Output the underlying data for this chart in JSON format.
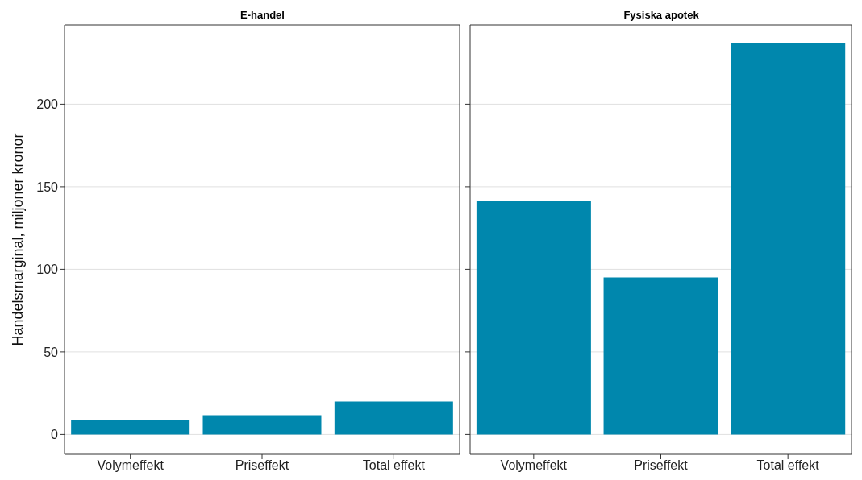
{
  "chart_data": [
    {
      "type": "bar",
      "title": "E-handel",
      "ylabel": "Handelsmarginal, miljoner kronor",
      "categories": [
        "Volymeffekt",
        "Priseffekt",
        "Total effekt"
      ],
      "values": [
        8.7,
        11.6,
        19.9
      ],
      "color": "#0087ad",
      "ylim": [
        -12,
        248
      ],
      "yticks": [
        0,
        50,
        100,
        150,
        200
      ],
      "grid": "y"
    },
    {
      "type": "bar",
      "title": "Fysiska apotek",
      "categories": [
        "Volymeffekt",
        "Priseffekt",
        "Total effekt"
      ],
      "values": [
        141.7,
        95.1,
        236.9
      ],
      "color": "#0087ad",
      "ylim": [
        -12,
        248
      ],
      "yticks": [
        0,
        50,
        100,
        150,
        200
      ],
      "grid": "y",
      "tick_labels": "x"
    }
  ]
}
